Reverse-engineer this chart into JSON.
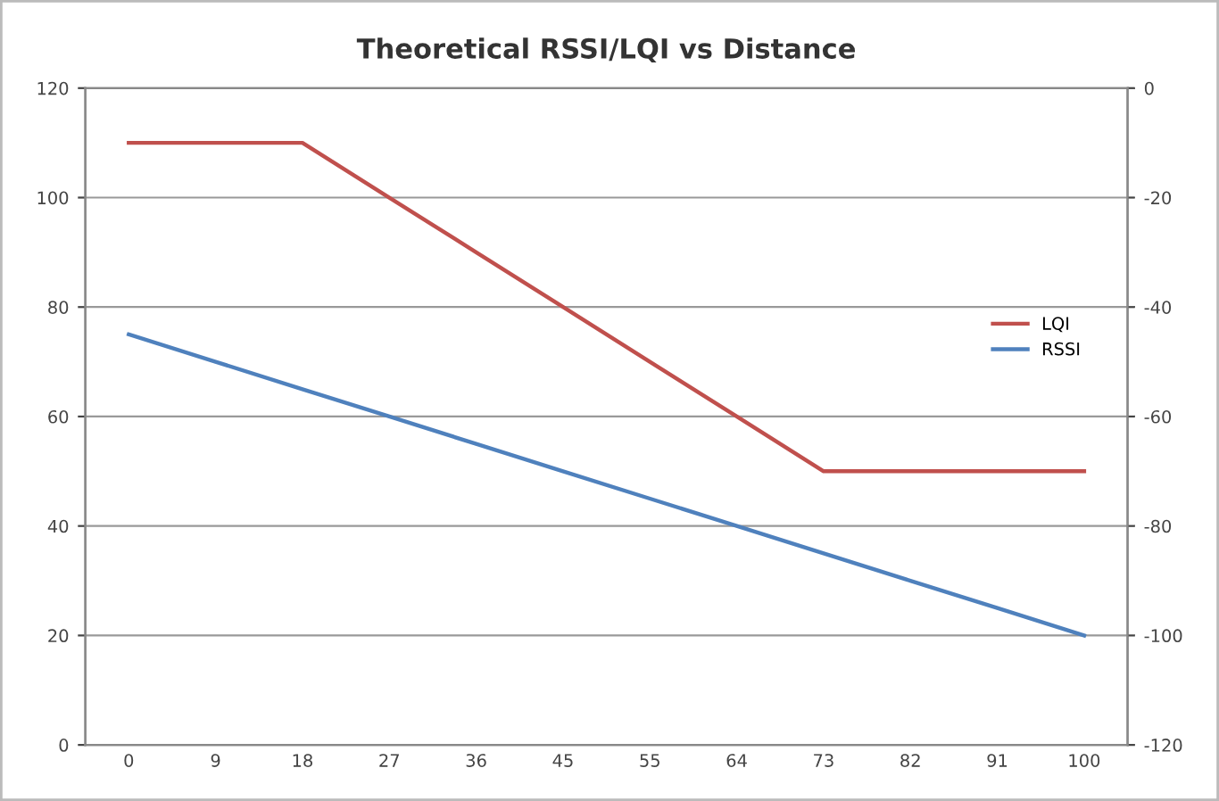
{
  "chart_data": {
    "type": "line",
    "title": "Theoretical RSSI/LQI vs Distance",
    "categories": [
      "0",
      "9",
      "18",
      "27",
      "36",
      "45",
      "55",
      "64",
      "73",
      "82",
      "91",
      "100"
    ],
    "series": [
      {
        "name": "LQI",
        "color": "#c0504d",
        "values": [
          110,
          110,
          110,
          100,
          90,
          80,
          70,
          60,
          50,
          50,
          50,
          50
        ]
      },
      {
        "name": "RSSI",
        "color": "#4f81bd",
        "axis": "y2",
        "values": [
          -45,
          -50,
          -55,
          -60,
          -65,
          -70,
          -75,
          -80,
          -85,
          -90,
          -95,
          -100
        ]
      }
    ],
    "ylim": [
      0,
      120
    ],
    "yticks": [
      0,
      20,
      40,
      60,
      80,
      100,
      120
    ],
    "y2lim": [
      -120,
      0
    ],
    "y2ticks": [
      -120,
      -100,
      -80,
      -60,
      -40,
      -20,
      0
    ],
    "grid": "y",
    "legend": "right",
    "marker": "none",
    "line_style": "solid"
  }
}
